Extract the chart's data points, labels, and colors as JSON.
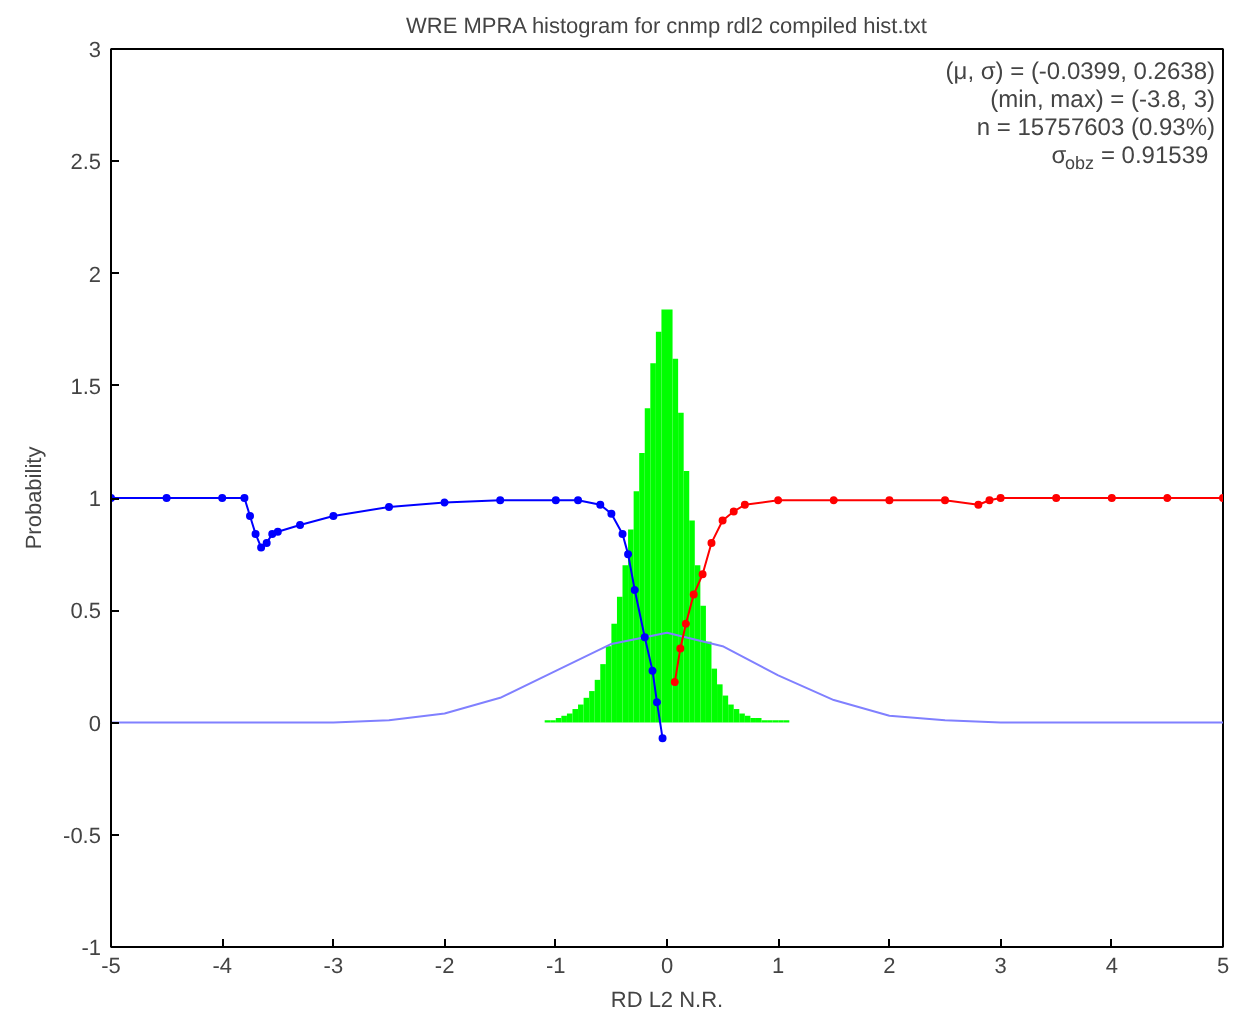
{
  "chart_data": {
    "type": "histogram",
    "title": "WRE MPRA histogram for cnmp rdl2 compiled hist.txt",
    "xlabel": "RD L2 N.R.",
    "ylabel": "Probability",
    "annotations": [
      "(μ, σ) = (-0.0399, 0.2638)",
      "(min, max) = (-3.8, 3)",
      "n = 15757603 (0.93%)",
      "σ$_{obz}$ = 0.91539"
    ],
    "xlim": [
      -5,
      5
    ],
    "xticks": [
      -5,
      -4,
      -3,
      -2,
      -1,
      0,
      1,
      2,
      3,
      4,
      5
    ],
    "ylim": [
      -1,
      3
    ],
    "yticks": [
      -1,
      -0.5,
      0,
      0.5,
      1,
      1.5,
      2,
      2.5,
      3
    ],
    "grid": false,
    "series": [
      {
        "type": "histogram",
        "color": "#00ff00",
        "bins": [
          -1.1,
          -1.05,
          -1.0,
          -0.95,
          -0.9,
          -0.85,
          -0.8,
          -0.75,
          -0.7,
          -0.65,
          -0.6,
          -0.55,
          -0.5,
          -0.45,
          -0.4,
          -0.35,
          -0.3,
          -0.25,
          -0.2,
          -0.15,
          -0.1,
          -0.05,
          0.0,
          0.05,
          0.1,
          0.15,
          0.2,
          0.25,
          0.3,
          0.35,
          0.4,
          0.45,
          0.5,
          0.55,
          0.6,
          0.65,
          0.7,
          0.75,
          0.8,
          0.85,
          0.9,
          0.95,
          1.0,
          1.05,
          1.1
        ],
        "values": [
          0.01,
          0.01,
          0.02,
          0.03,
          0.04,
          0.06,
          0.08,
          0.11,
          0.14,
          0.19,
          0.26,
          0.34,
          0.44,
          0.56,
          0.7,
          0.86,
          1.03,
          1.2,
          1.4,
          1.6,
          1.74,
          1.84,
          1.84,
          1.62,
          1.38,
          1.12,
          0.9,
          0.7,
          0.52,
          0.36,
          0.24,
          0.17,
          0.12,
          0.08,
          0.06,
          0.04,
          0.03,
          0.02,
          0.02,
          0.01,
          0.01,
          0.01,
          0.01,
          0.01
        ]
      },
      {
        "type": "line",
        "color": "#8080ff",
        "marker": "none",
        "x": [
          -5,
          -4,
          -3,
          -2.5,
          -2,
          -1.5,
          -1,
          -0.5,
          0,
          0.5,
          1,
          1.5,
          2,
          2.5,
          3,
          4,
          5
        ],
        "values": [
          0,
          0,
          0,
          0.01,
          0.04,
          0.11,
          0.23,
          0.35,
          0.4,
          0.34,
          0.21,
          0.1,
          0.03,
          0.01,
          0,
          0,
          0
        ]
      },
      {
        "type": "line",
        "color": "#0000ff",
        "marker": "circle",
        "x": [
          -5,
          -4.5,
          -4,
          -3.8,
          -3.75,
          -3.7,
          -3.65,
          -3.6,
          -3.55,
          -3.5,
          -3.3,
          -3,
          -2.5,
          -2,
          -1.5,
          -1,
          -0.8,
          -0.6,
          -0.5,
          -0.4,
          -0.35,
          -0.29,
          -0.2,
          -0.13,
          -0.09,
          -0.04
        ],
        "values": [
          1,
          1,
          1,
          1,
          0.92,
          0.84,
          0.78,
          0.8,
          0.84,
          0.85,
          0.88,
          0.92,
          0.96,
          0.98,
          0.99,
          0.99,
          0.99,
          0.97,
          0.93,
          0.84,
          0.75,
          0.59,
          0.38,
          0.23,
          0.09,
          -0.07
        ]
      },
      {
        "type": "line",
        "color": "#ff0000",
        "marker": "circle",
        "x": [
          0.07,
          0.12,
          0.17,
          0.24,
          0.32,
          0.4,
          0.5,
          0.6,
          0.7,
          1.0,
          1.5,
          2.0,
          2.5,
          2.8,
          2.9,
          3.0,
          3.5,
          4.0,
          4.5,
          5.0
        ],
        "values": [
          0.18,
          0.33,
          0.44,
          0.57,
          0.66,
          0.8,
          0.9,
          0.94,
          0.97,
          0.99,
          0.99,
          0.99,
          0.99,
          0.97,
          0.99,
          1.0,
          1.0,
          1.0,
          1.0,
          1.0
        ]
      }
    ]
  }
}
